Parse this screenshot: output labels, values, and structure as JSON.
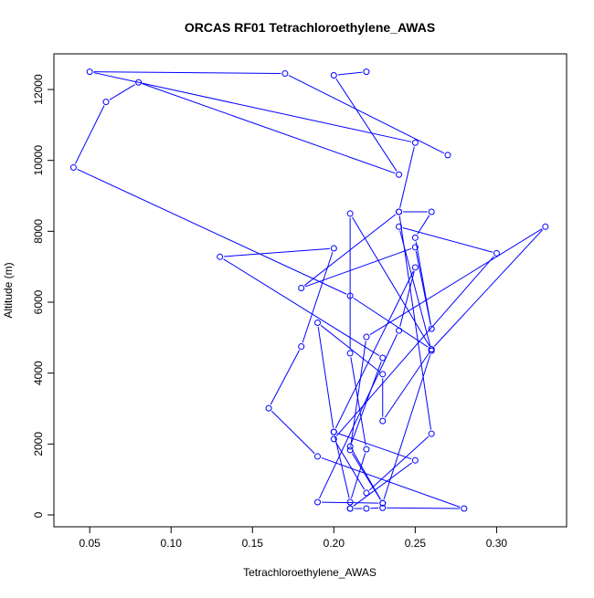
{
  "chart_data": {
    "type": "line",
    "title": "ORCAS RF01 Tetrachloroethylene_AWAS",
    "xlabel": "Tetrachloroethylene_AWAS",
    "ylabel": "Altitude (m)",
    "xlim": [
      0.028,
      0.343
    ],
    "ylim": [
      -335,
      13005
    ],
    "x_ticks": [
      0.05,
      0.1,
      0.15,
      0.2,
      0.25,
      0.3
    ],
    "x_tick_labels": [
      "0.05",
      "0.10",
      "0.15",
      "0.20",
      "0.25",
      "0.30"
    ],
    "y_ticks": [
      0,
      2000,
      4000,
      6000,
      8000,
      10000,
      12000
    ],
    "y_tick_labels": [
      "0",
      "2000",
      "4000",
      "6000",
      "8000",
      "10000",
      "12000"
    ],
    "grid": false,
    "color": "#0000ff",
    "markers": "open-circle",
    "series": [
      {
        "name": "Tetrachloroethylene_AWAS",
        "points": [
          [
            0.21,
            180
          ],
          [
            0.22,
            180
          ],
          [
            0.23,
            200
          ],
          [
            0.28,
            180
          ],
          [
            0.19,
            1650
          ],
          [
            0.16,
            3010
          ],
          [
            0.18,
            4750
          ],
          [
            0.2,
            7520
          ],
          [
            0.13,
            7280
          ],
          [
            0.23,
            4430
          ],
          [
            0.21,
            1930
          ],
          [
            0.23,
            330
          ],
          [
            0.19,
            360
          ],
          [
            0.24,
            5200
          ],
          [
            0.25,
            6980
          ],
          [
            0.2,
            2340
          ],
          [
            0.21,
            360
          ],
          [
            0.22,
            1850
          ],
          [
            0.21,
            4560
          ],
          [
            0.21,
            8500
          ],
          [
            0.26,
            4670
          ],
          [
            0.33,
            8130
          ],
          [
            0.22,
            5020
          ],
          [
            0.21,
            1830
          ],
          [
            0.23,
            330
          ],
          [
            0.26,
            4630
          ],
          [
            0.24,
            8130
          ],
          [
            0.3,
            7380
          ],
          [
            0.2,
            2140
          ],
          [
            0.22,
            620
          ],
          [
            0.26,
            2290
          ],
          [
            0.24,
            8550
          ],
          [
            0.26,
            8550
          ],
          [
            0.25,
            7820
          ],
          [
            0.26,
            5250
          ],
          [
            0.25,
            7550
          ],
          [
            0.18,
            6400
          ],
          [
            0.24,
            8550
          ],
          [
            0.25,
            10500
          ],
          [
            0.05,
            12500
          ],
          [
            0.17,
            12450
          ],
          [
            0.27,
            10150
          ],
          null,
          [
            0.22,
            12500
          ],
          [
            0.2,
            12400
          ],
          [
            0.24,
            9600
          ],
          [
            0.08,
            12200
          ],
          [
            0.06,
            11650
          ],
          [
            0.04,
            9800
          ],
          [
            0.21,
            6180
          ],
          [
            0.26,
            4670
          ],
          [
            0.23,
            2650
          ],
          [
            0.23,
            3970
          ],
          [
            0.19,
            5420
          ],
          [
            0.2,
            2340
          ],
          [
            0.25,
            1540
          ],
          [
            0.21,
            180
          ]
        ]
      }
    ]
  }
}
